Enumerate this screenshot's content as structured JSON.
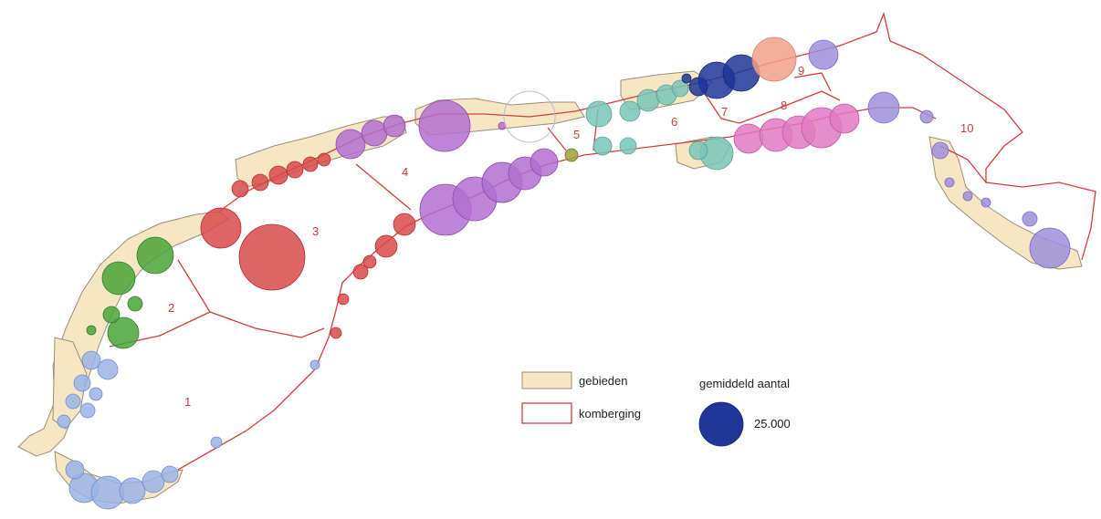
{
  "colors": {
    "area_fill": "#f7e6c3",
    "area_stroke": "#9b8f7a",
    "boundary": "#d63c3c",
    "blue": "#9bb3e6",
    "green": "#4aa33a",
    "red": "#d84a4a",
    "purple": "#b36fd0",
    "teal": "#79c6b8",
    "navy": "#1f3597",
    "salmon": "#f0a08a",
    "pink": "#e07ac2",
    "lavender": "#9d8fdc"
  },
  "compartment_labels": [
    "1",
    "2",
    "3",
    "4",
    "5",
    "6",
    "7",
    "8",
    "9",
    "10"
  ],
  "legend": {
    "gebieden": "gebieden",
    "komberging": "komberging",
    "size_title": "gemiddeld aantal",
    "size_value": "25.000"
  }
}
